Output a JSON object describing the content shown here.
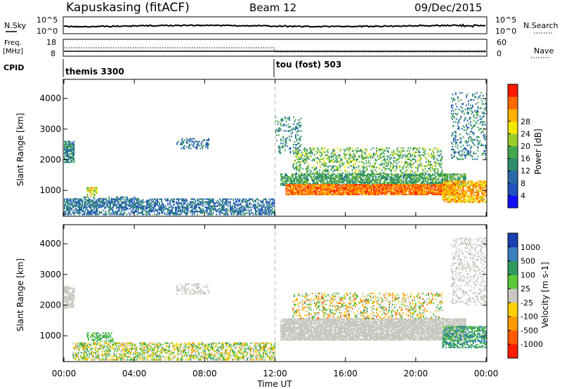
{
  "header": {
    "station": "Kapuskasing (fitACF)",
    "beam": "Beam 12",
    "date": "09/Dec/2015"
  },
  "noise_panel": {
    "left_label": "N.Sky",
    "right_label": "N.Search",
    "left_ticks": [
      "10^5",
      "10^0"
    ],
    "right_ticks": [
      "10^5",
      "10^0"
    ]
  },
  "freq_panel": {
    "left_label_1": "Freq.",
    "left_label_2": "[MHz]",
    "left_ticks": [
      "18",
      "8"
    ],
    "right_ticks": [
      "60",
      "0"
    ],
    "right_label": "Nave"
  },
  "cpid": {
    "label": "CPID",
    "modes": [
      {
        "name": "themis 3300",
        "start_hour": 0
      },
      {
        "name": "tou (fost) 503",
        "start_hour": 12
      }
    ]
  },
  "chart_data": [
    {
      "type": "heatmap",
      "name": "power-panel",
      "xlabel": "",
      "ylabel": "Slant Range [km]",
      "x_unit": "hours UT",
      "xlim": [
        0,
        24
      ],
      "ylim": [
        180,
        4600
      ],
      "yticks": [
        "1000",
        "2000",
        "3000",
        "4000"
      ],
      "colorbar": {
        "label": "Power [dB]",
        "ticks": [
          "4",
          "8",
          "12",
          "16",
          "20",
          "24",
          "28"
        ],
        "colors": [
          "#1010ff",
          "#2050c0",
          "#2a6aa8",
          "#2e8c6e",
          "#42a84e",
          "#9acd2a",
          "#f2e800",
          "#ffb000",
          "#ff6a00",
          "#ff1a00"
        ]
      },
      "regions": [
        {
          "t": [
            0.0,
            0.55
          ],
          "r": [
            1900,
            2600
          ],
          "level": [
            4,
            14
          ],
          "density": 0.7
        },
        {
          "t": [
            1.3,
            1.9
          ],
          "r": [
            800,
            1100
          ],
          "level": [
            14,
            26
          ],
          "density": 0.6
        },
        {
          "t": [
            0.0,
            12.0
          ],
          "r": [
            200,
            700
          ],
          "level": [
            2,
            12
          ],
          "density": 0.55
        },
        {
          "t": [
            0.5,
            4.5
          ],
          "r": [
            400,
            800
          ],
          "level": [
            4,
            12
          ],
          "density": 0.2
        },
        {
          "t": [
            6.4,
            8.2
          ],
          "r": [
            2350,
            2700
          ],
          "level": [
            4,
            10
          ],
          "density": 0.35
        },
        {
          "t": [
            12.3,
            22.8
          ],
          "r": [
            1150,
            1550
          ],
          "level": [
            8,
            16
          ],
          "density": 0.7
        },
        {
          "t": [
            12.6,
            22.2
          ],
          "r": [
            850,
            1200
          ],
          "level": [
            22,
            30
          ],
          "density": 0.9
        },
        {
          "t": [
            13.0,
            21.5
          ],
          "r": [
            1550,
            2400
          ],
          "level": [
            8,
            20
          ],
          "density": 0.3
        },
        {
          "t": [
            12.0,
            13.5
          ],
          "r": [
            2200,
            3400
          ],
          "level": [
            6,
            14
          ],
          "density": 0.25
        },
        {
          "t": [
            21.5,
            24.0
          ],
          "r": [
            600,
            1300
          ],
          "level": [
            18,
            28
          ],
          "density": 0.7
        },
        {
          "t": [
            22.0,
            24.0
          ],
          "r": [
            2000,
            4200
          ],
          "level": [
            4,
            14
          ],
          "density": 0.2
        }
      ]
    },
    {
      "type": "heatmap",
      "name": "velocity-panel",
      "xlabel": "Time UT",
      "ylabel": "Slant Range [km]",
      "x_unit": "hours UT",
      "xlim": [
        0,
        24
      ],
      "ylim": [
        180,
        4600
      ],
      "xticks": [
        "00:00",
        "04:00",
        "08:00",
        "12:00",
        "16:00",
        "20:00",
        "00:00"
      ],
      "yticks": [
        "1000",
        "2000",
        "3000",
        "4000"
      ],
      "colorbar": {
        "label": "Velocity [m s-1]",
        "ticks": [
          "1000",
          "500",
          "100",
          "25",
          "-25",
          "-100",
          "-500",
          "-1000"
        ],
        "colors": [
          "#1a3fb0",
          "#3a7fc0",
          "#2e9a60",
          "#5dc83a",
          "#c8c8c0",
          "#ffd000",
          "#ff9a00",
          "#ff5a00",
          "#ff1a00"
        ]
      },
      "regions": [
        {
          "t": [
            0.0,
            0.55
          ],
          "r": [
            1900,
            2600
          ],
          "level": [
            4,
            4
          ],
          "density": 0.6
        },
        {
          "t": [
            1.3,
            2.8
          ],
          "r": [
            800,
            1100
          ],
          "level": [
            2,
            3
          ],
          "density": 0.5
        },
        {
          "t": [
            0.5,
            12.0
          ],
          "r": [
            200,
            750
          ],
          "level": [
            2,
            6
          ],
          "density": 0.5
        },
        {
          "t": [
            6.4,
            8.2
          ],
          "r": [
            2350,
            2700
          ],
          "level": [
            4,
            4
          ],
          "density": 0.35
        },
        {
          "t": [
            12.3,
            22.8
          ],
          "r": [
            850,
            1550
          ],
          "level": [
            4,
            4
          ],
          "density": 0.85
        },
        {
          "t": [
            13.0,
            21.5
          ],
          "r": [
            1550,
            2400
          ],
          "level": [
            2,
            7
          ],
          "density": 0.25
        },
        {
          "t": [
            21.5,
            24.0
          ],
          "r": [
            600,
            1300
          ],
          "level": [
            1,
            3
          ],
          "density": 0.6
        },
        {
          "t": [
            22.0,
            24.0
          ],
          "r": [
            2000,
            4200
          ],
          "level": [
            4,
            4
          ],
          "density": 0.25
        }
      ]
    }
  ]
}
